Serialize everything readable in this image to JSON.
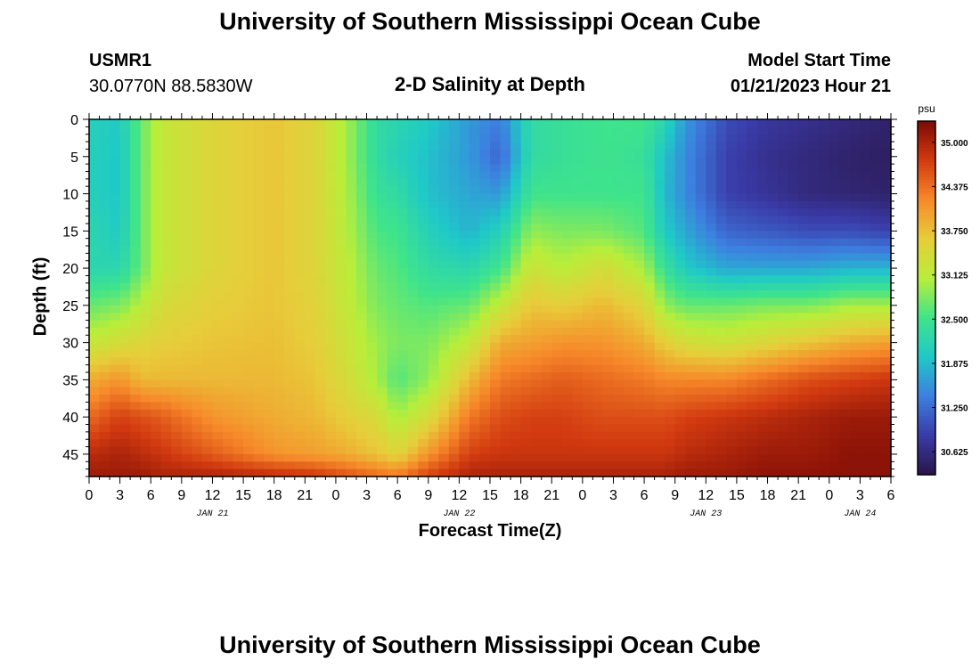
{
  "header": {
    "title": "University of Southern Mississippi Ocean Cube",
    "station": "USMR1",
    "coords": "30.0770N  88.5830W",
    "subtitle": "2-D Salinity at Depth",
    "model_label": "Model Start Time",
    "model_time": "01/21/2023 Hour 21"
  },
  "footer": {
    "title": "University of Southern Mississippi Ocean Cube"
  },
  "colors": {
    "scale": [
      "#2a1548",
      "#3a3ba8",
      "#3d7fe0",
      "#1fc9c8",
      "#40e48a",
      "#b8ee3a",
      "#e7cd3a",
      "#f7892a",
      "#d23a10",
      "#7d0a05"
    ]
  },
  "chart_data": {
    "type": "heatmap",
    "xlabel": "Forecast Time(Z)",
    "ylabel": "Depth (ft)",
    "x_range_hours": [
      0,
      78
    ],
    "ylim": [
      0,
      48
    ],
    "x_tick_labels": [
      "0",
      "3",
      "6",
      "9",
      "12",
      "15",
      "18",
      "21",
      "0",
      "3",
      "6",
      "9",
      "12",
      "15",
      "18",
      "21",
      "0",
      "3",
      "6",
      "9",
      "12",
      "15",
      "18",
      "21",
      "0",
      "3",
      "6"
    ],
    "y_ticks": [
      0,
      5,
      10,
      15,
      20,
      25,
      30,
      35,
      40,
      45
    ],
    "date_labels": [
      {
        "label": "JAN 21",
        "hour": 12
      },
      {
        "label": "JAN 22",
        "hour": 36
      },
      {
        "label": "JAN 23",
        "hour": 60
      },
      {
        "label": "JAN 24",
        "hour": 75
      }
    ],
    "colorbar": {
      "unit": "psu",
      "min": 30.3,
      "max": 35.3,
      "ticks": [
        "35.000",
        "34.375",
        "33.750",
        "33.125",
        "32.500",
        "31.875",
        "31.250",
        "30.625"
      ]
    },
    "profile_depths": [
      0,
      5,
      10,
      15,
      20,
      25,
      30,
      35,
      40,
      45,
      48
    ],
    "profiles": [
      {
        "hour": 0,
        "values": [
          32.1,
          32.1,
          32.1,
          32.2,
          32.2,
          32.7,
          33.2,
          33.9,
          34.4,
          34.9,
          35.1
        ]
      },
      {
        "hour": 3,
        "values": [
          32.0,
          31.95,
          31.95,
          32.0,
          32.2,
          32.8,
          33.4,
          34.1,
          34.7,
          35.0,
          35.1
        ]
      },
      {
        "hour": 5,
        "values": [
          32.7,
          32.7,
          32.7,
          32.7,
          32.7,
          33.1,
          33.5,
          33.8,
          34.6,
          34.9,
          35.1
        ]
      },
      {
        "hour": 7,
        "values": [
          33.2,
          33.2,
          33.2,
          33.2,
          33.2,
          33.4,
          33.6,
          33.8,
          34.5,
          34.8,
          35.0
        ]
      },
      {
        "hour": 12,
        "values": [
          33.5,
          33.5,
          33.5,
          33.5,
          33.5,
          33.6,
          33.7,
          33.8,
          34.1,
          34.5,
          35.0
        ]
      },
      {
        "hour": 18,
        "values": [
          33.7,
          33.7,
          33.7,
          33.7,
          33.7,
          33.7,
          33.75,
          33.8,
          33.9,
          34.1,
          34.9
        ]
      },
      {
        "hour": 22,
        "values": [
          33.5,
          33.5,
          33.5,
          33.5,
          33.5,
          33.55,
          33.6,
          33.7,
          33.8,
          34.0,
          34.8
        ]
      },
      {
        "hour": 25,
        "values": [
          33.0,
          33.0,
          33.05,
          33.1,
          33.15,
          33.2,
          33.3,
          33.4,
          33.6,
          33.9,
          34.6
        ]
      },
      {
        "hour": 28,
        "values": [
          32.3,
          32.3,
          32.4,
          32.55,
          32.7,
          32.8,
          32.95,
          33.0,
          33.4,
          33.7,
          34.4
        ]
      },
      {
        "hour": 30,
        "values": [
          32.2,
          32.1,
          32.3,
          32.5,
          32.6,
          32.7,
          32.8,
          32.6,
          33.0,
          33.5,
          34.3
        ]
      },
      {
        "hour": 33,
        "values": [
          32.0,
          31.9,
          31.9,
          32.1,
          32.3,
          32.6,
          32.8,
          32.9,
          33.4,
          34.1,
          34.7
        ]
      },
      {
        "hour": 37,
        "values": [
          31.6,
          31.6,
          31.7,
          31.8,
          32.2,
          32.7,
          33.2,
          33.8,
          34.3,
          34.7,
          35.0
        ]
      },
      {
        "hour": 40,
        "values": [
          31.4,
          31.2,
          31.6,
          32.1,
          32.5,
          33.2,
          33.9,
          34.3,
          34.6,
          34.8,
          35.0
        ]
      },
      {
        "hour": 43,
        "values": [
          32.3,
          32.3,
          32.5,
          32.9,
          33.3,
          33.7,
          34.0,
          34.4,
          34.7,
          34.8,
          35.0
        ]
      },
      {
        "hour": 46,
        "values": [
          32.4,
          32.4,
          32.5,
          32.8,
          33.1,
          33.6,
          34.1,
          34.5,
          34.7,
          34.8,
          35.0
        ]
      },
      {
        "hour": 50,
        "values": [
          32.5,
          32.5,
          32.5,
          32.8,
          33.4,
          33.8,
          34.1,
          34.4,
          34.6,
          34.8,
          35.0
        ]
      },
      {
        "hour": 54,
        "values": [
          32.5,
          32.4,
          32.5,
          32.6,
          33.0,
          33.5,
          33.9,
          34.3,
          34.6,
          34.8,
          35.0
        ]
      },
      {
        "hour": 56,
        "values": [
          32.2,
          31.9,
          31.85,
          32.0,
          32.4,
          32.9,
          33.6,
          34.2,
          34.6,
          34.8,
          35.0
        ]
      },
      {
        "hour": 58,
        "values": [
          31.6,
          31.5,
          31.5,
          31.7,
          32.0,
          32.7,
          33.4,
          34.2,
          34.7,
          34.9,
          35.1
        ]
      },
      {
        "hour": 62,
        "values": [
          31.0,
          30.9,
          30.9,
          31.2,
          31.7,
          32.7,
          33.3,
          34.2,
          34.8,
          35.0,
          35.1
        ]
      },
      {
        "hour": 66,
        "values": [
          30.8,
          30.7,
          30.75,
          31.1,
          31.7,
          32.8,
          33.5,
          34.4,
          34.9,
          35.1,
          35.2
        ]
      },
      {
        "hour": 70,
        "values": [
          30.7,
          30.6,
          30.6,
          31.0,
          31.7,
          32.8,
          33.7,
          34.6,
          35.0,
          35.1,
          35.2
        ]
      },
      {
        "hour": 74,
        "values": [
          30.6,
          30.5,
          30.55,
          31.0,
          31.8,
          33.0,
          33.9,
          34.7,
          35.1,
          35.2,
          35.2
        ]
      },
      {
        "hour": 78,
        "values": [
          30.5,
          30.45,
          30.5,
          30.9,
          31.8,
          33.0,
          34.0,
          34.8,
          35.1,
          35.2,
          35.2
        ]
      }
    ]
  }
}
